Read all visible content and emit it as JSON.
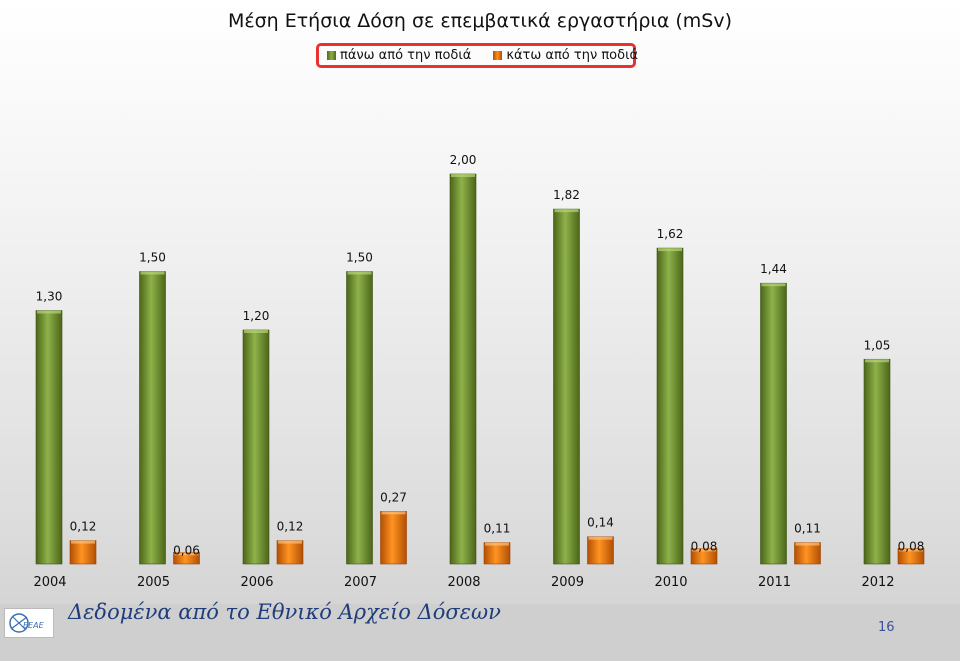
{
  "slide": {
    "source_text": "Δεδομένα από το Εθνικό Αρχείο Δόσεων",
    "page_number": "16",
    "logo_text": "ΕΕΑΕ"
  },
  "chart_data": {
    "type": "bar",
    "title": "Μέση Ετήσια Δόση σε επεμβατικά εργαστήρια (mSv)",
    "categories": [
      "2004",
      "2005",
      "2006",
      "2007",
      "2008",
      "2009",
      "2010",
      "2011",
      "2012"
    ],
    "series": [
      {
        "name": "πάνω από την ποδιά",
        "color": "#7a9a34",
        "values": [
          1.3,
          1.5,
          1.2,
          1.5,
          2.0,
          1.82,
          1.62,
          1.44,
          1.05
        ],
        "labels": [
          "1,30",
          "1,50",
          "1,20",
          "1,50",
          "2,00",
          "1,82",
          "1,62",
          "1,44",
          "1,05"
        ]
      },
      {
        "name": "κάτω από την ποδιά",
        "color": "#f07b12",
        "values": [
          0.12,
          0.06,
          0.12,
          0.27,
          0.11,
          0.14,
          0.08,
          0.11,
          0.08
        ],
        "labels": [
          "0,12",
          "0,06",
          "0,12",
          "0,27",
          "0,11",
          "0,14",
          "0,08",
          "0,11",
          "0,08"
        ]
      }
    ],
    "ylim": [
      0,
      2.0
    ],
    "grid": false,
    "legend_position": "top"
  }
}
